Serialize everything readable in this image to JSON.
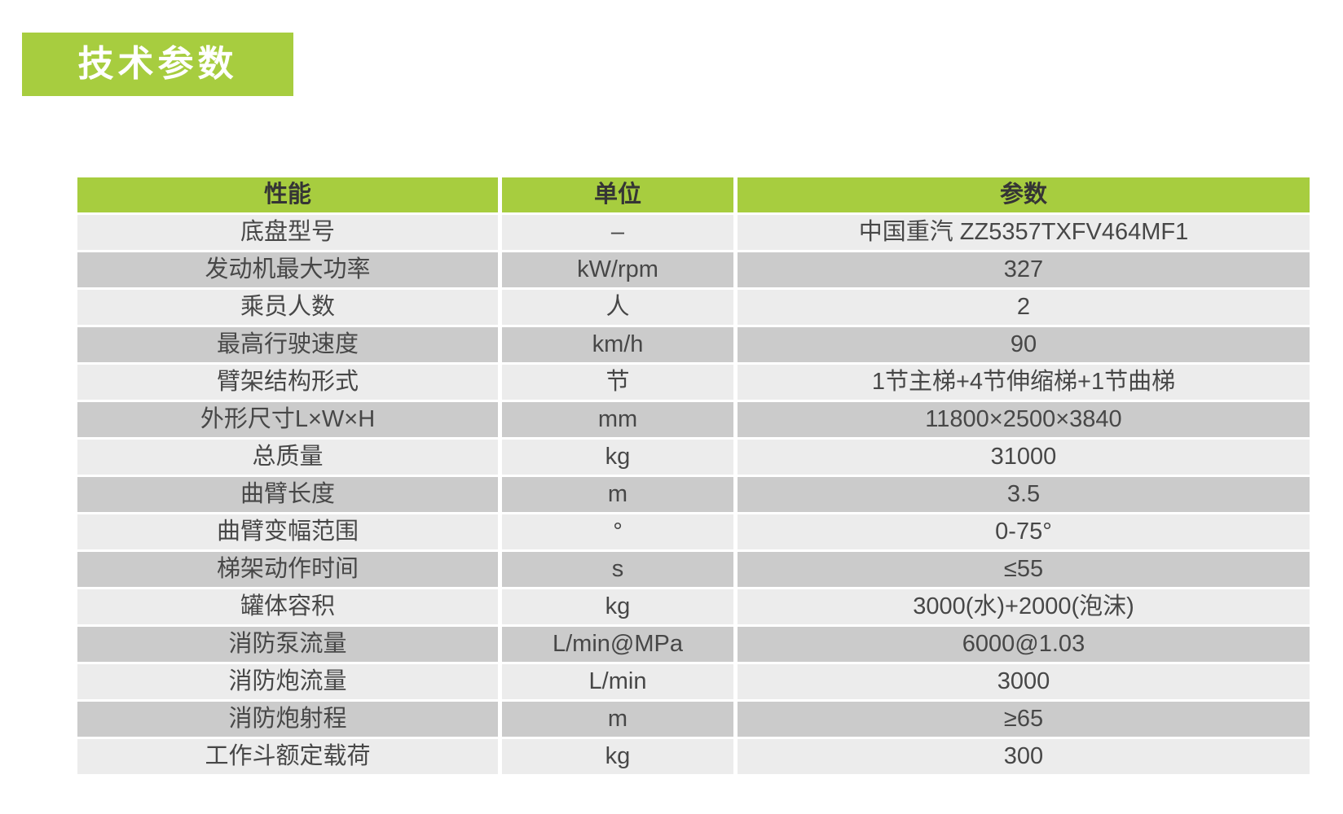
{
  "title": "技术参数",
  "colors": {
    "green": "#a7cd3f",
    "row_light": "#ececec",
    "row_dark": "#cbcbcb",
    "cell_text": "#474747",
    "header_text": "#353535",
    "title_text": "#ffffff"
  },
  "table": {
    "headers": [
      "性能",
      "单位",
      "参数"
    ],
    "rows": [
      {
        "name": "底盘型号",
        "unit": "–",
        "value": "中国重汽 ZZ5357TXFV464MF1"
      },
      {
        "name": "发动机最大功率",
        "unit": "kW/rpm",
        "value": "327"
      },
      {
        "name": "乘员人数",
        "unit": "人",
        "value": "2"
      },
      {
        "name": "最高行驶速度",
        "unit": "km/h",
        "value": "90"
      },
      {
        "name": "臂架结构形式",
        "unit": "节",
        "value": "1节主梯+4节伸缩梯+1节曲梯"
      },
      {
        "name": "外形尺寸L×W×H",
        "unit": "mm",
        "value": "11800×2500×3840"
      },
      {
        "name": "总质量",
        "unit": "kg",
        "value": "31000"
      },
      {
        "name": "曲臂长度",
        "unit": "m",
        "value": "3.5"
      },
      {
        "name": "曲臂变幅范围",
        "unit": "°",
        "value": "0-75°"
      },
      {
        "name": "梯架动作时间",
        "unit": "s",
        "value": "≤55"
      },
      {
        "name": "罐体容积",
        "unit": "kg",
        "value": "3000(水)+2000(泡沫)"
      },
      {
        "name": "消防泵流量",
        "unit": "L/min@MPa",
        "value": "6000@1.03"
      },
      {
        "name": "消防炮流量",
        "unit": "L/min",
        "value": "3000"
      },
      {
        "name": "消防炮射程",
        "unit": "m",
        "value": "≥65"
      },
      {
        "name": "工作斗额定载荷",
        "unit": "kg",
        "value": "300"
      }
    ]
  }
}
